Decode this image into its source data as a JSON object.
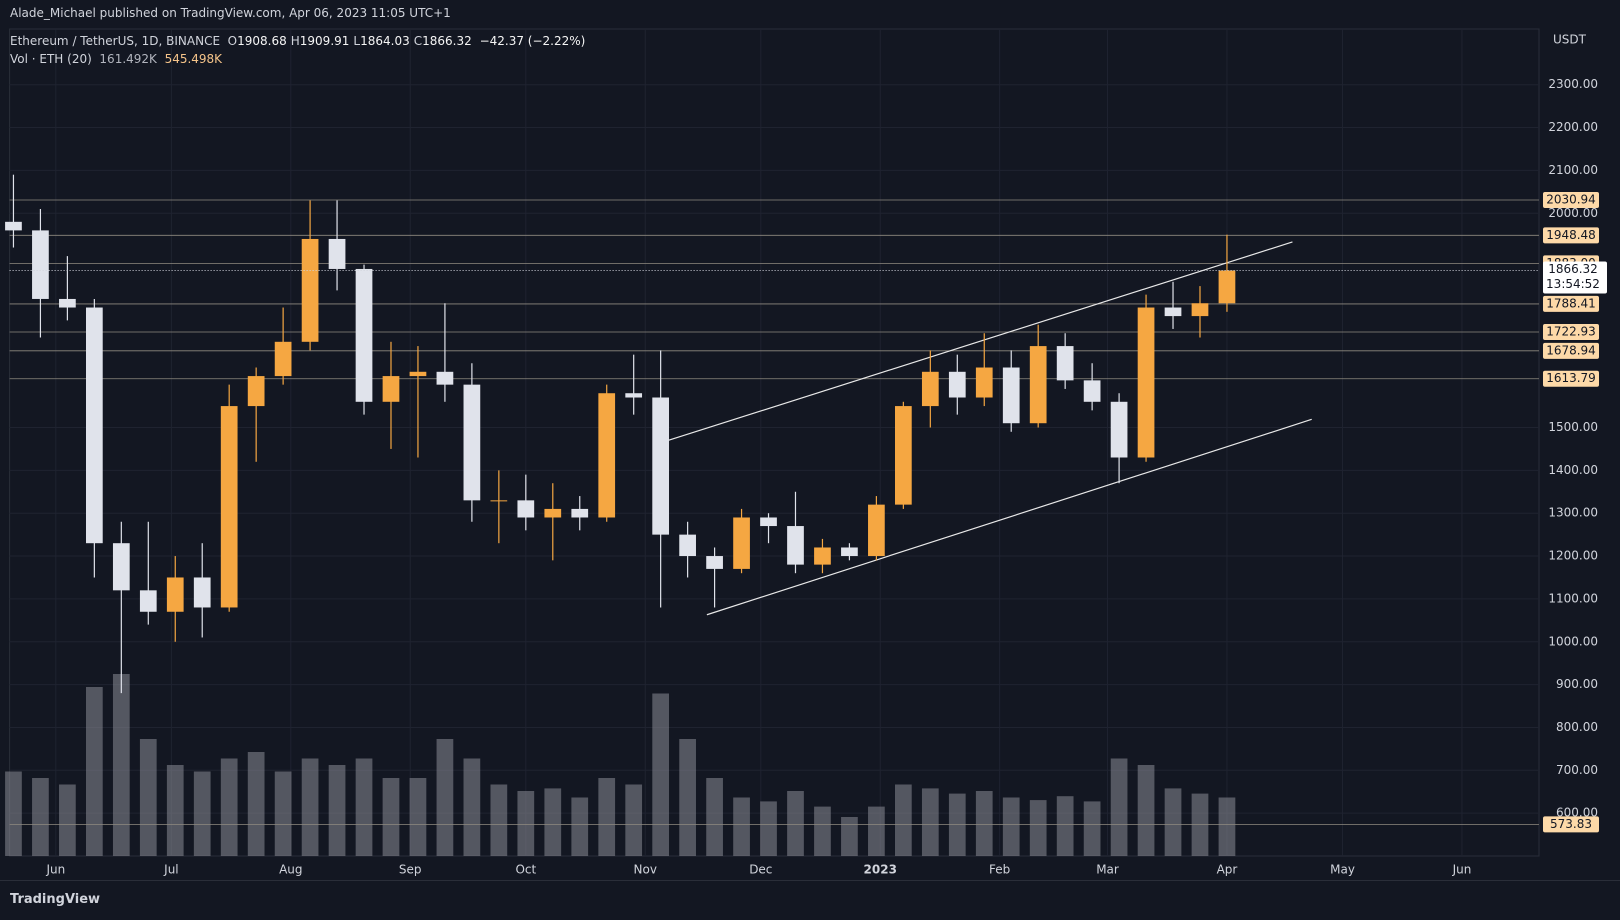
{
  "header": {
    "publisher": "Alade_Michael published on TradingView.com, Apr 06, 2023 11:05 UTC+1",
    "symbol": "Ethereum / TetherUS, 1D, BINANCE",
    "ohlc": [
      {
        "label": "O",
        "value": "1908.68"
      },
      {
        "label": "H",
        "value": "1909.91"
      },
      {
        "label": "L",
        "value": "1864.03"
      },
      {
        "label": "C",
        "value": "1866.32"
      }
    ],
    "change": "−42.37 (−2.22%)",
    "volume_label": "Vol · ETH (20)",
    "volume_value": "161.492K",
    "volume_ma": "545.498K"
  },
  "footer": {
    "brand": "TradingView"
  },
  "chart_data": {
    "type": "candlestick",
    "currency": "USDT",
    "xlim": [
      -12,
      385
    ],
    "ylim": [
      500,
      2430
    ],
    "volume_lim": [
      0,
      2000
    ],
    "grid": true,
    "up_color": "#f5a742",
    "down_color": "#e0e3eb",
    "volume_color": "#8a8d96",
    "xticks": [
      {
        "value": 0,
        "label": "Jun"
      },
      {
        "value": 30,
        "label": "Jul"
      },
      {
        "value": 61,
        "label": "Aug"
      },
      {
        "value": 92,
        "label": "Sep"
      },
      {
        "value": 122,
        "label": "Oct"
      },
      {
        "value": 153,
        "label": "Nov"
      },
      {
        "value": 183,
        "label": "Dec"
      },
      {
        "value": 214,
        "label": "2023"
      },
      {
        "value": 245,
        "label": "Feb"
      },
      {
        "value": 273,
        "label": "Mar"
      },
      {
        "value": 304,
        "label": "Apr"
      },
      {
        "value": 334,
        "label": "May"
      },
      {
        "value": 365,
        "label": "Jun"
      }
    ],
    "yticks": [
      {
        "value": 600,
        "label": "600.00"
      },
      {
        "value": 700,
        "label": "700.00"
      },
      {
        "value": 800,
        "label": "800.00"
      },
      {
        "value": 900,
        "label": "900.00"
      },
      {
        "value": 1000,
        "label": "1000.00"
      },
      {
        "value": 1100,
        "label": "1100.00"
      },
      {
        "value": 1200,
        "label": "1200.00"
      },
      {
        "value": 1300,
        "label": "1300.00"
      },
      {
        "value": 1400,
        "label": "1400.00"
      },
      {
        "value": 1500,
        "label": "1500.00"
      },
      {
        "value": 2000,
        "label": "2000.00"
      },
      {
        "value": 2100,
        "label": "2100.00"
      },
      {
        "value": 2200,
        "label": "2200.00"
      },
      {
        "value": 2300,
        "label": "2300.00"
      }
    ],
    "levels": [
      2030.94,
      1948.48,
      {
        "value": 1883,
        "label": "1883.00"
      },
      1788.41,
      1722.93,
      1678.94,
      1613.79,
      573.83
    ],
    "last_price": 1866.32,
    "countdown": "13:54:52",
    "trendlines": [
      {
        "x": [
          159,
          321
        ],
        "y": [
          1470,
          1933
        ]
      },
      {
        "x": [
          169,
          326
        ],
        "y": [
          1063,
          1519
        ]
      }
    ],
    "candles": {
      "x": [
        -11,
        -4,
        3,
        10,
        17,
        24,
        31,
        38,
        45,
        52,
        59,
        66,
        73,
        80,
        87,
        94,
        101,
        108,
        115,
        122,
        129,
        136,
        143,
        150,
        157,
        164,
        171,
        178,
        185,
        192,
        199,
        206,
        213,
        220,
        227,
        234,
        241,
        248,
        255,
        262,
        269,
        276,
        283,
        290,
        297,
        304
      ],
      "open": [
        1980,
        1960,
        1800,
        1780,
        1230,
        1120,
        1070,
        1150,
        1080,
        1550,
        1620,
        1700,
        1940,
        1870,
        1560,
        1620,
        1630,
        1600,
        1330,
        1330,
        1290,
        1310,
        1290,
        1580,
        1570,
        1250,
        1200,
        1170,
        1290,
        1270,
        1180,
        1220,
        1200,
        1320,
        1550,
        1630,
        1570,
        1640,
        1510,
        1690,
        1610,
        1560,
        1430,
        1780,
        1760,
        1790
      ],
      "high": [
        2090,
        2010,
        1900,
        1800,
        1280,
        1280,
        1200,
        1230,
        1600,
        1640,
        1780,
        2030,
        2030,
        1880,
        1700,
        1690,
        1790,
        1650,
        1400,
        1390,
        1370,
        1340,
        1600,
        1670,
        1680,
        1280,
        1220,
        1310,
        1300,
        1350,
        1240,
        1230,
        1340,
        1560,
        1680,
        1670,
        1720,
        1680,
        1740,
        1720,
        1650,
        1580,
        1810,
        1840,
        1830,
        1950
      ],
      "low": [
        1920,
        1710,
        1750,
        1150,
        880,
        1040,
        1000,
        1010,
        1070,
        1420,
        1600,
        1680,
        1820,
        1530,
        1450,
        1430,
        1560,
        1280,
        1230,
        1260,
        1190,
        1260,
        1280,
        1530,
        1080,
        1150,
        1080,
        1160,
        1230,
        1160,
        1160,
        1190,
        1190,
        1310,
        1500,
        1530,
        1550,
        1490,
        1500,
        1590,
        1540,
        1370,
        1420,
        1730,
        1710,
        1770
      ],
      "close": [
        1960,
        1800,
        1780,
        1230,
        1120,
        1070,
        1150,
        1080,
        1550,
        1620,
        1700,
        1940,
        1870,
        1560,
        1620,
        1630,
        1600,
        1330,
        1330,
        1290,
        1310,
        1290,
        1580,
        1570,
        1250,
        1200,
        1170,
        1290,
        1270,
        1180,
        1220,
        1200,
        1320,
        1550,
        1630,
        1570,
        1640,
        1510,
        1690,
        1610,
        1560,
        1430,
        1780,
        1760,
        1790,
        1866.32
      ],
      "volume": [
        650,
        600,
        550,
        1300,
        1400,
        900,
        700,
        650,
        750,
        800,
        650,
        750,
        700,
        750,
        600,
        600,
        900,
        750,
        550,
        500,
        520,
        450,
        600,
        550,
        1250,
        900,
        600,
        450,
        420,
        500,
        380,
        300,
        380,
        550,
        520,
        480,
        500,
        450,
        430,
        460,
        420,
        750,
        700,
        520,
        480,
        450
      ]
    }
  }
}
